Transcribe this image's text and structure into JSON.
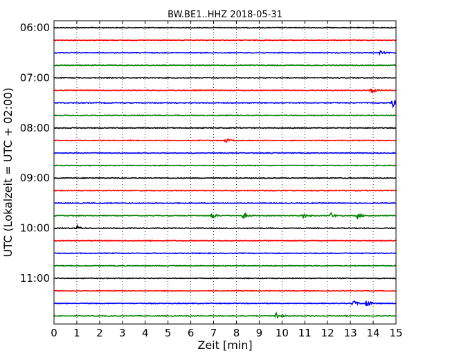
{
  "chart_data": {
    "type": "line",
    "title": "BW.BE1..HHZ 2018-05-31",
    "xlabel": "Zeit  [min]",
    "ylabel": "UTC (Lokalzeit = UTC + 02:00)",
    "xlim": [
      0,
      15
    ],
    "x_ticks": [
      "0",
      "1",
      "2",
      "3",
      "4",
      "5",
      "6",
      "7",
      "8",
      "9",
      "10",
      "11",
      "12",
      "13",
      "14",
      "15"
    ],
    "y_ticks": [
      "06:00",
      "07:00",
      "08:00",
      "09:00",
      "10:00",
      "11:00"
    ],
    "grid": "vertical dotted",
    "color_cycle": [
      "#000000",
      "#ff0000",
      "#0000ff",
      "#008000"
    ],
    "series": [
      {
        "start": "06:00",
        "color": "#000000",
        "events": []
      },
      {
        "start": "06:15",
        "color": "#ff0000",
        "events": []
      },
      {
        "start": "06:30",
        "color": "#0000ff",
        "events": [
          {
            "t": 14.3,
            "amp": 0.3
          }
        ]
      },
      {
        "start": "06:45",
        "color": "#008000",
        "events": []
      },
      {
        "start": "07:00",
        "color": "#000000",
        "events": []
      },
      {
        "start": "07:15",
        "color": "#ff0000",
        "events": [
          {
            "t": 13.9,
            "amp": 0.55
          }
        ]
      },
      {
        "start": "07:30",
        "color": "#0000ff",
        "events": [
          {
            "t": 14.85,
            "amp": 0.7
          }
        ]
      },
      {
        "start": "07:45",
        "color": "#008000",
        "events": []
      },
      {
        "start": "08:00",
        "color": "#000000",
        "events": []
      },
      {
        "start": "08:15",
        "color": "#ff0000",
        "events": [
          {
            "t": 7.5,
            "amp": 0.4
          }
        ]
      },
      {
        "start": "08:30",
        "color": "#0000ff",
        "events": []
      },
      {
        "start": "08:45",
        "color": "#008000",
        "events": []
      },
      {
        "start": "09:00",
        "color": "#000000",
        "events": []
      },
      {
        "start": "09:15",
        "color": "#ff0000",
        "events": []
      },
      {
        "start": "09:30",
        "color": "#0000ff",
        "events": []
      },
      {
        "start": "09:45",
        "color": "#008000",
        "events": [
          {
            "t": 6.9,
            "amp": 0.6
          },
          {
            "t": 8.3,
            "amp": 0.6
          },
          {
            "t": 10.9,
            "amp": 0.45
          },
          {
            "t": 12.1,
            "amp": 0.65
          },
          {
            "t": 13.3,
            "amp": 0.55
          }
        ]
      },
      {
        "start": "10:00",
        "color": "#000000",
        "events": [
          {
            "t": 1.0,
            "amp": 0.4
          }
        ]
      },
      {
        "start": "10:15",
        "color": "#ff0000",
        "events": []
      },
      {
        "start": "10:30",
        "color": "#0000ff",
        "events": []
      },
      {
        "start": "10:45",
        "color": "#008000",
        "events": []
      },
      {
        "start": "11:00",
        "color": "#000000",
        "events": []
      },
      {
        "start": "11:15",
        "color": "#ff0000",
        "events": []
      },
      {
        "start": "11:30",
        "color": "#0000ff",
        "events": [
          {
            "t": 13.1,
            "amp": 0.6
          },
          {
            "t": 13.7,
            "amp": 0.7
          }
        ]
      },
      {
        "start": "11:45",
        "color": "#008000",
        "events": [
          {
            "t": 9.7,
            "amp": 0.8
          }
        ]
      }
    ]
  }
}
